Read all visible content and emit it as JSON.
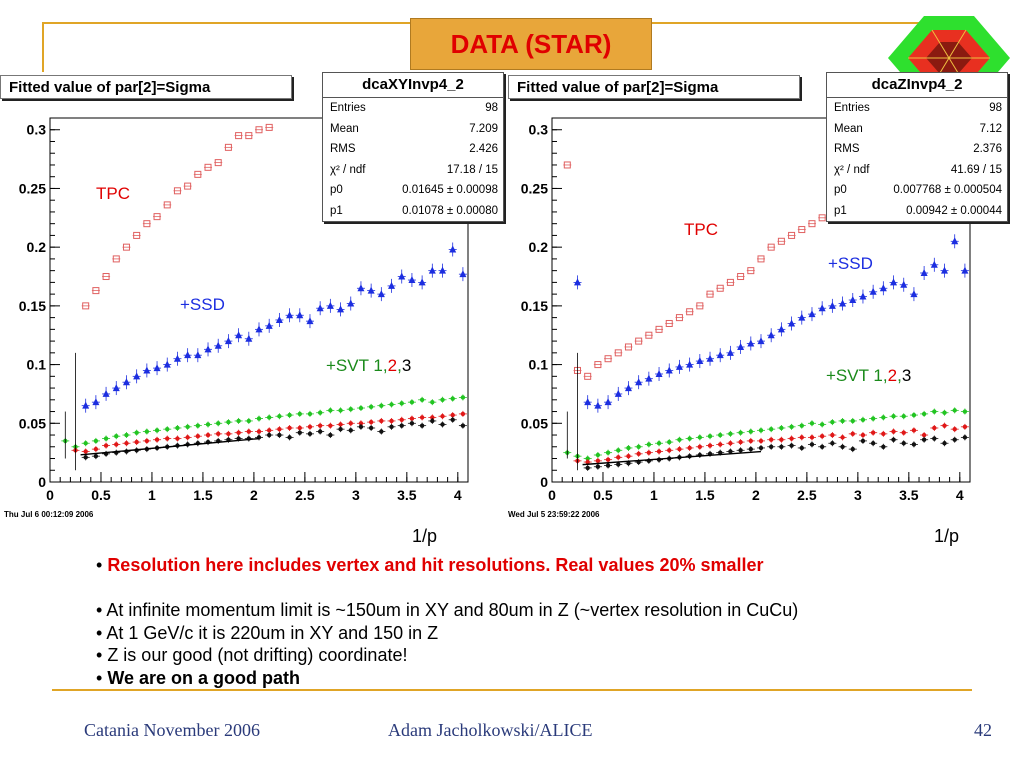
{
  "slide": {
    "title": "DATA (STAR)",
    "accent_color": "#e0a526",
    "title_box_color": "#e8a63a",
    "title_text_color": "#e00000"
  },
  "plots": [
    {
      "fit_title": "Fitted value of par[2]=Sigma",
      "stats": {
        "title": "dcaXYInvp4_2",
        "rows": [
          {
            "label": "Entries",
            "value": "98"
          },
          {
            "label": "Mean",
            "value": "7.209"
          },
          {
            "label": "RMS",
            "value": "2.426"
          },
          {
            "label": "χ² / ndf",
            "value": "17.18 / 15"
          },
          {
            "label": "p0",
            "value": "0.01645 ± 0.00098"
          },
          {
            "label": "p1",
            "value": "0.01078 ± 0.00080"
          }
        ]
      },
      "timestamp": "Thu Jul  6 00:12:09 2006",
      "x_unit": "1/p",
      "labels": {
        "tpc": "TPC",
        "ssd": "+SSD",
        "svt_prefix": "+SVT ",
        "svt1": "1",
        "svt2": "2",
        "svt3": "3"
      }
    },
    {
      "fit_title": "Fitted value of par[2]=Sigma",
      "stats": {
        "title": "dcaZInvp4_2",
        "rows": [
          {
            "label": "Entries",
            "value": "98"
          },
          {
            "label": "Mean",
            "value": "7.12"
          },
          {
            "label": "RMS",
            "value": "2.376"
          },
          {
            "label": "χ² / ndf",
            "value": "41.69 / 15"
          },
          {
            "label": "p0",
            "value": "0.007768 ± 0.000504"
          },
          {
            "label": "p1",
            "value": "0.00942 ± 0.00044"
          }
        ]
      },
      "timestamp": "Wed Jul  5 23:59:22 2006",
      "x_unit": "1/p",
      "labels": {
        "tpc": "TPC",
        "ssd": "+SSD",
        "svt_prefix": "+SVT ",
        "svt1": "1",
        "svt2": "2",
        "svt3": "3"
      }
    }
  ],
  "chart_data": [
    {
      "type": "scatter",
      "title": "Fitted value of par[2]=Sigma",
      "xlabel": "1/p",
      "ylabel": "",
      "xlim": [
        0,
        4.1
      ],
      "ylim": [
        0,
        0.31
      ],
      "xticks": [
        0,
        0.5,
        1,
        1.5,
        2,
        2.5,
        3,
        3.5,
        4
      ],
      "yticks": [
        0,
        0.05,
        0.1,
        0.15,
        0.2,
        0.25,
        0.3
      ],
      "xtick_labels": [
        "0",
        "0.5",
        "1",
        "1.5",
        "2",
        "2.5",
        "3",
        "3.5",
        "4"
      ],
      "ytick_labels": [
        "0",
        "0.05",
        "0.1",
        "0.15",
        "0.2",
        "0.25",
        "0.3"
      ],
      "series": [
        {
          "name": "TPC",
          "color": "#e06060",
          "marker": "open-square",
          "x": [
            0.35,
            0.45,
            0.55,
            0.65,
            0.75,
            0.85,
            0.95,
            1.05,
            1.15,
            1.25,
            1.35,
            1.45,
            1.55,
            1.65,
            1.75,
            1.85,
            1.95,
            2.05,
            2.15
          ],
          "y": [
            0.15,
            0.163,
            0.175,
            0.19,
            0.2,
            0.21,
            0.22,
            0.226,
            0.236,
            0.248,
            0.252,
            0.262,
            0.268,
            0.272,
            0.285,
            0.295,
            0.295,
            0.3,
            0.302
          ]
        },
        {
          "name": "+SSD",
          "color": "#1c2ee0",
          "marker": "triangle",
          "x": [
            0.35,
            0.45,
            0.55,
            0.65,
            0.75,
            0.85,
            0.95,
            1.05,
            1.15,
            1.25,
            1.35,
            1.45,
            1.55,
            1.65,
            1.75,
            1.85,
            1.95,
            2.05,
            2.15,
            2.25,
            2.35,
            2.45,
            2.55,
            2.65,
            2.75,
            2.85,
            2.95,
            3.05,
            3.15,
            3.25,
            3.35,
            3.45,
            3.55,
            3.65,
            3.75,
            3.85,
            3.95,
            4.05
          ],
          "y": [
            0.065,
            0.068,
            0.075,
            0.08,
            0.085,
            0.09,
            0.095,
            0.097,
            0.1,
            0.105,
            0.108,
            0.108,
            0.113,
            0.116,
            0.12,
            0.125,
            0.122,
            0.13,
            0.133,
            0.138,
            0.142,
            0.142,
            0.137,
            0.148,
            0.15,
            0.147,
            0.152,
            0.165,
            0.163,
            0.16,
            0.167,
            0.175,
            0.172,
            0.17,
            0.18,
            0.18,
            0.198,
            0.177
          ]
        },
        {
          "name": "+SVT 1",
          "color": "#22c422",
          "marker": "star",
          "x": [
            0.15,
            0.25,
            0.35,
            0.45,
            0.55,
            0.65,
            0.75,
            0.85,
            0.95,
            1.05,
            1.15,
            1.25,
            1.35,
            1.45,
            1.55,
            1.65,
            1.75,
            1.85,
            1.95,
            2.05,
            2.15,
            2.25,
            2.35,
            2.45,
            2.55,
            2.65,
            2.75,
            2.85,
            2.95,
            3.05,
            3.15,
            3.25,
            3.35,
            3.45,
            3.55,
            3.65,
            3.75,
            3.85,
            3.95,
            4.05
          ],
          "y": [
            0.035,
            0.03,
            0.033,
            0.035,
            0.037,
            0.039,
            0.04,
            0.042,
            0.043,
            0.044,
            0.045,
            0.046,
            0.047,
            0.048,
            0.049,
            0.05,
            0.051,
            0.052,
            0.052,
            0.054,
            0.055,
            0.056,
            0.057,
            0.058,
            0.058,
            0.059,
            0.061,
            0.061,
            0.062,
            0.063,
            0.064,
            0.065,
            0.066,
            0.067,
            0.068,
            0.07,
            0.068,
            0.07,
            0.071,
            0.072
          ]
        },
        {
          "name": "+SVT 2",
          "color": "#e01818",
          "marker": "star",
          "x": [
            0.25,
            0.35,
            0.45,
            0.55,
            0.65,
            0.75,
            0.85,
            0.95,
            1.05,
            1.15,
            1.25,
            1.35,
            1.45,
            1.55,
            1.65,
            1.75,
            1.85,
            1.95,
            2.05,
            2.15,
            2.25,
            2.35,
            2.45,
            2.55,
            2.65,
            2.75,
            2.85,
            2.95,
            3.05,
            3.15,
            3.25,
            3.35,
            3.45,
            3.55,
            3.65,
            3.75,
            3.85,
            3.95,
            4.05
          ],
          "y": [
            0.027,
            0.026,
            0.028,
            0.031,
            0.032,
            0.033,
            0.034,
            0.035,
            0.036,
            0.037,
            0.037,
            0.038,
            0.039,
            0.04,
            0.041,
            0.041,
            0.042,
            0.043,
            0.043,
            0.044,
            0.045,
            0.046,
            0.046,
            0.047,
            0.048,
            0.048,
            0.049,
            0.05,
            0.05,
            0.051,
            0.052,
            0.052,
            0.053,
            0.054,
            0.055,
            0.055,
            0.056,
            0.057,
            0.058
          ]
        },
        {
          "name": "+SVT 3",
          "color": "#111111",
          "marker": "star",
          "x": [
            0.35,
            0.45,
            0.55,
            0.65,
            0.75,
            0.85,
            0.95,
            1.05,
            1.15,
            1.25,
            1.35,
            1.45,
            1.55,
            1.65,
            1.75,
            1.85,
            1.95,
            2.05,
            2.15,
            2.25,
            2.35,
            2.45,
            2.55,
            2.65,
            2.75,
            2.85,
            2.95,
            3.05,
            3.15,
            3.25,
            3.35,
            3.45,
            3.55,
            3.65,
            3.75,
            3.85,
            3.95,
            4.05
          ],
          "y": [
            0.021,
            0.022,
            0.024,
            0.025,
            0.026,
            0.027,
            0.028,
            0.029,
            0.03,
            0.031,
            0.032,
            0.033,
            0.034,
            0.035,
            0.036,
            0.037,
            0.037,
            0.038,
            0.04,
            0.04,
            0.038,
            0.042,
            0.041,
            0.043,
            0.04,
            0.045,
            0.044,
            0.047,
            0.046,
            0.043,
            0.047,
            0.048,
            0.05,
            0.048,
            0.052,
            0.049,
            0.053,
            0.048
          ]
        }
      ]
    },
    {
      "type": "scatter",
      "title": "Fitted value of par[2]=Sigma",
      "xlabel": "1/p",
      "ylabel": "",
      "xlim": [
        0,
        4.1
      ],
      "ylim": [
        0,
        0.31
      ],
      "xticks": [
        0,
        0.5,
        1,
        1.5,
        2,
        2.5,
        3,
        3.5,
        4
      ],
      "yticks": [
        0,
        0.05,
        0.1,
        0.15,
        0.2,
        0.25,
        0.3
      ],
      "xtick_labels": [
        "0",
        "0.5",
        "1",
        "1.5",
        "2",
        "2.5",
        "3",
        "3.5",
        "4"
      ],
      "ytick_labels": [
        "0",
        "0.05",
        "0.1",
        "0.15",
        "0.2",
        "0.25",
        "0.3"
      ],
      "series": [
        {
          "name": "TPC",
          "color": "#e06060",
          "marker": "open-square",
          "x": [
            0.15,
            0.25,
            0.35,
            0.45,
            0.55,
            0.65,
            0.75,
            0.85,
            0.95,
            1.05,
            1.15,
            1.25,
            1.35,
            1.45,
            1.55,
            1.65,
            1.75,
            1.85,
            1.95,
            2.05,
            2.15,
            2.25,
            2.35,
            2.45,
            2.55,
            2.65,
            2.75,
            2.85,
            2.95,
            3.05
          ],
          "y": [
            0.27,
            0.095,
            0.09,
            0.1,
            0.105,
            0.11,
            0.115,
            0.12,
            0.125,
            0.13,
            0.135,
            0.14,
            0.145,
            0.15,
            0.16,
            0.165,
            0.17,
            0.175,
            0.18,
            0.19,
            0.2,
            0.205,
            0.21,
            0.215,
            0.22,
            0.225,
            0.23,
            0.235,
            0.24,
            0.245
          ]
        },
        {
          "name": "+SSD",
          "color": "#1c2ee0",
          "marker": "triangle",
          "x": [
            0.25,
            0.35,
            0.45,
            0.55,
            0.65,
            0.75,
            0.85,
            0.95,
            1.05,
            1.15,
            1.25,
            1.35,
            1.45,
            1.55,
            1.65,
            1.75,
            1.85,
            1.95,
            2.05,
            2.15,
            2.25,
            2.35,
            2.45,
            2.55,
            2.65,
            2.75,
            2.85,
            2.95,
            3.05,
            3.15,
            3.25,
            3.35,
            3.45,
            3.55,
            3.65,
            3.75,
            3.85,
            3.95,
            4.05
          ],
          "y": [
            0.17,
            0.068,
            0.065,
            0.068,
            0.075,
            0.08,
            0.085,
            0.088,
            0.092,
            0.095,
            0.098,
            0.1,
            0.103,
            0.105,
            0.108,
            0.11,
            0.115,
            0.118,
            0.12,
            0.125,
            0.13,
            0.135,
            0.14,
            0.143,
            0.148,
            0.15,
            0.152,
            0.155,
            0.158,
            0.162,
            0.165,
            0.17,
            0.168,
            0.16,
            0.178,
            0.185,
            0.18,
            0.205,
            0.18
          ]
        },
        {
          "name": "+SVT 1",
          "color": "#22c422",
          "marker": "star",
          "x": [
            0.15,
            0.25,
            0.35,
            0.45,
            0.55,
            0.65,
            0.75,
            0.85,
            0.95,
            1.05,
            1.15,
            1.25,
            1.35,
            1.45,
            1.55,
            1.65,
            1.75,
            1.85,
            1.95,
            2.05,
            2.15,
            2.25,
            2.35,
            2.45,
            2.55,
            2.65,
            2.75,
            2.85,
            2.95,
            3.05,
            3.15,
            3.25,
            3.35,
            3.45,
            3.55,
            3.65,
            3.75,
            3.85,
            3.95,
            4.05
          ],
          "y": [
            0.025,
            0.022,
            0.02,
            0.023,
            0.025,
            0.027,
            0.029,
            0.03,
            0.032,
            0.033,
            0.034,
            0.036,
            0.037,
            0.038,
            0.039,
            0.04,
            0.041,
            0.042,
            0.043,
            0.044,
            0.045,
            0.046,
            0.047,
            0.048,
            0.05,
            0.049,
            0.051,
            0.052,
            0.052,
            0.053,
            0.054,
            0.055,
            0.056,
            0.056,
            0.057,
            0.058,
            0.06,
            0.059,
            0.061,
            0.06
          ]
        },
        {
          "name": "+SVT 2",
          "color": "#e01818",
          "marker": "star",
          "x": [
            0.25,
            0.35,
            0.45,
            0.55,
            0.65,
            0.75,
            0.85,
            0.95,
            1.05,
            1.15,
            1.25,
            1.35,
            1.45,
            1.55,
            1.65,
            1.75,
            1.85,
            1.95,
            2.05,
            2.15,
            2.25,
            2.35,
            2.45,
            2.55,
            2.65,
            2.75,
            2.85,
            2.95,
            3.05,
            3.15,
            3.25,
            3.35,
            3.45,
            3.55,
            3.65,
            3.75,
            3.85,
            3.95,
            4.05
          ],
          "y": [
            0.018,
            0.017,
            0.018,
            0.019,
            0.021,
            0.022,
            0.024,
            0.025,
            0.026,
            0.027,
            0.028,
            0.029,
            0.03,
            0.031,
            0.032,
            0.033,
            0.034,
            0.035,
            0.035,
            0.036,
            0.036,
            0.037,
            0.038,
            0.038,
            0.039,
            0.04,
            0.038,
            0.041,
            0.04,
            0.042,
            0.041,
            0.043,
            0.042,
            0.044,
            0.04,
            0.046,
            0.048,
            0.045,
            0.047
          ]
        },
        {
          "name": "+SVT 3",
          "color": "#111111",
          "marker": "star",
          "x": [
            0.35,
            0.45,
            0.55,
            0.65,
            0.75,
            0.85,
            0.95,
            1.05,
            1.15,
            1.25,
            1.35,
            1.45,
            1.55,
            1.65,
            1.75,
            1.85,
            1.95,
            2.05,
            2.15,
            2.25,
            2.35,
            2.45,
            2.55,
            2.65,
            2.75,
            2.85,
            2.95,
            3.05,
            3.15,
            3.25,
            3.35,
            3.45,
            3.55,
            3.65,
            3.75,
            3.85,
            3.95,
            4.05
          ],
          "y": [
            0.012,
            0.013,
            0.014,
            0.015,
            0.016,
            0.017,
            0.018,
            0.019,
            0.02,
            0.021,
            0.022,
            0.023,
            0.024,
            0.025,
            0.026,
            0.027,
            0.028,
            0.029,
            0.03,
            0.03,
            0.031,
            0.029,
            0.032,
            0.03,
            0.033,
            0.03,
            0.028,
            0.035,
            0.033,
            0.03,
            0.036,
            0.033,
            0.032,
            0.036,
            0.037,
            0.033,
            0.036,
            0.038
          ]
        }
      ]
    }
  ],
  "bullets": [
    {
      "prefix": "• ",
      "text": "Resolution here includes vertex and hit resolutions. Real values 20% smaller",
      "color": "#e00000",
      "bold": true
    },
    {
      "prefix": "",
      "text": "",
      "color": "#000000",
      "bold": false
    },
    {
      "prefix": "• ",
      "text": "At infinite momentum limit is ~150um in XY and 80um in Z (~vertex resolution in CuCu)",
      "color": "#000000",
      "bold": false
    },
    {
      "prefix": "• ",
      "text": "At 1 GeV/c it is 220um in XY and 150 in Z",
      "color": "#000000",
      "bold": false
    },
    {
      "prefix": "• ",
      "text": "Z is our good (not drifting) coordinate!",
      "color": "#000000",
      "bold": false
    },
    {
      "prefix": "• ",
      "text": "We are on a good path",
      "color": "#000000",
      "bold": true
    }
  ],
  "footer": {
    "left": "Catania November 2006",
    "center": "Adam Jacholkowski/ALICE",
    "right": "42"
  }
}
